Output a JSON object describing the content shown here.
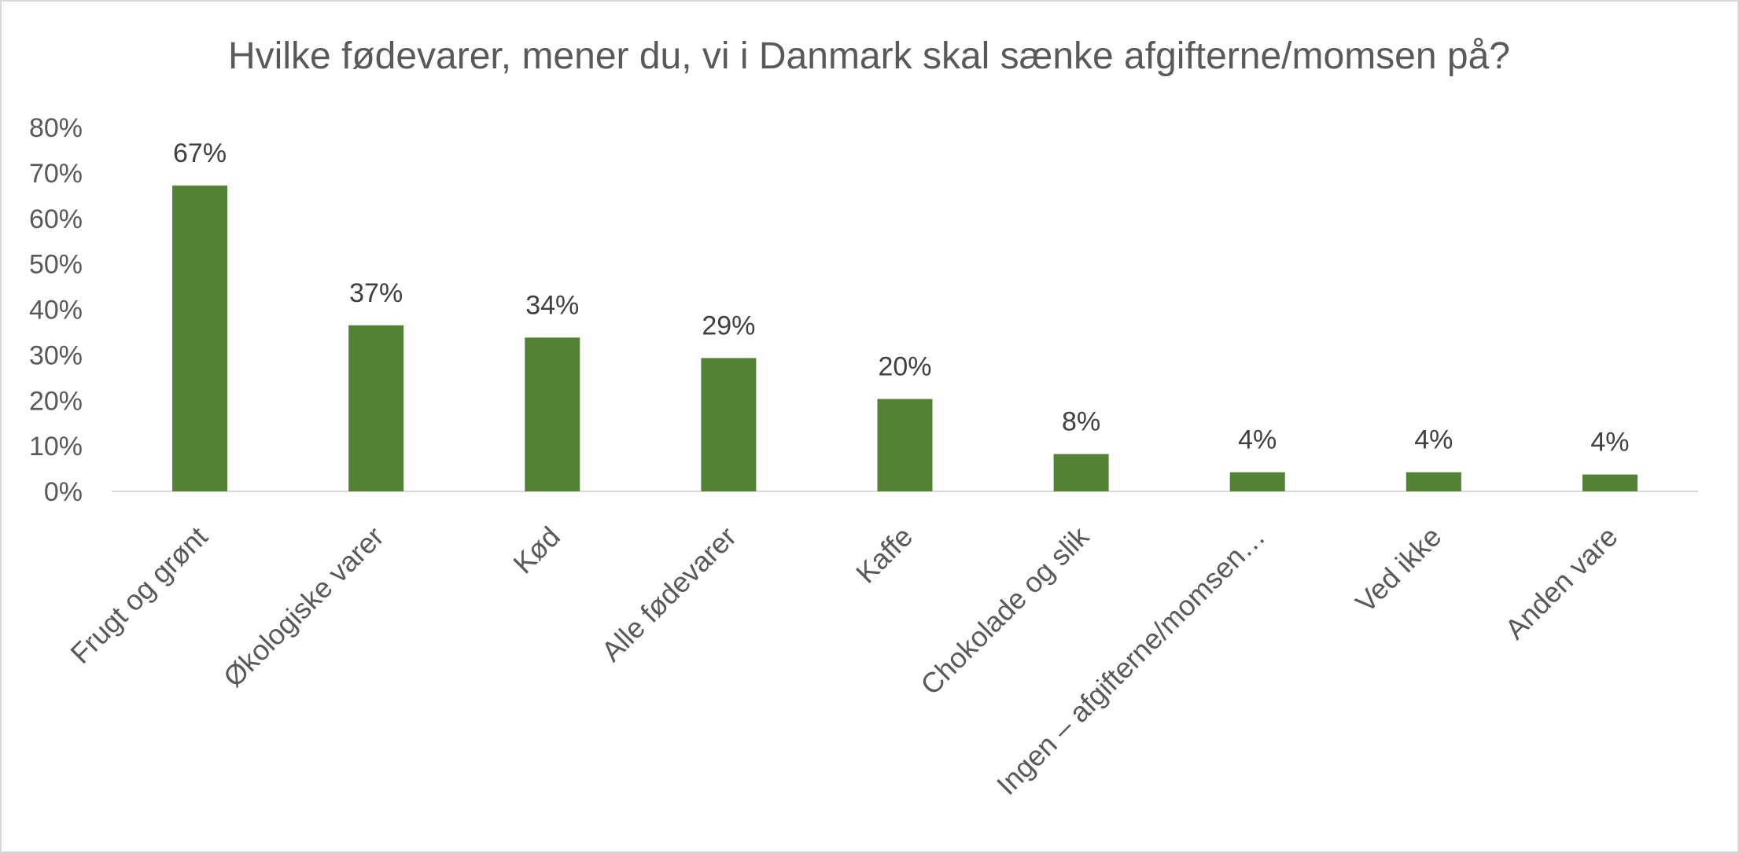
{
  "chart_data": {
    "type": "bar",
    "title": "Hvilke fødevarer, mener du, vi i Danmark skal sænke afgifterne/momsen på?",
    "categories": [
      "Frugt og grønt",
      "Økologiske varer",
      "Kød",
      "Alle fødevarer",
      "Kaffe",
      "Chokolade og slik",
      "Ingen – afgifterne/momsen…",
      "Ved ikke",
      "Anden vare"
    ],
    "values": [
      67.2,
      36.5,
      33.8,
      29.3,
      20.3,
      8.2,
      4.2,
      4.2,
      3.7
    ],
    "data_labels": [
      "67%",
      "37%",
      "34%",
      "29%",
      "20%",
      "8%",
      "4%",
      "4%",
      "4%"
    ],
    "y_ticks": [
      "0%",
      "10%",
      "20%",
      "30%",
      "40%",
      "50%",
      "60%",
      "70%",
      "80%"
    ],
    "ylim": [
      0,
      80
    ],
    "xlabel": "",
    "ylabel": "",
    "grid": false,
    "legend": "none",
    "bar_color": "#548235",
    "axis_color": "#d9d9d9"
  }
}
